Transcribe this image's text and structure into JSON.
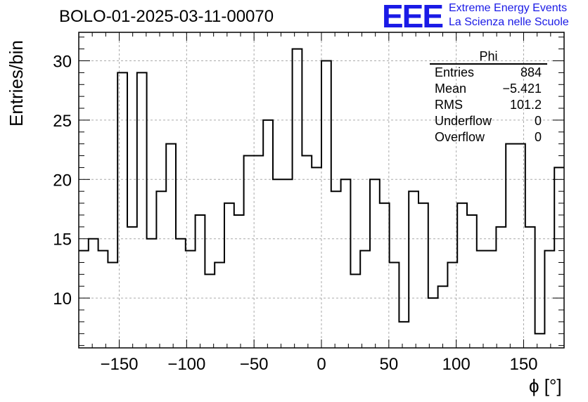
{
  "title": "BOLO-01-2025-03-11-00070",
  "logo": {
    "mark": "EEE",
    "line1": "Extreme Energy Events",
    "line2": "La Scienza nelle Scuole",
    "color": "#1a1ae6"
  },
  "stats": {
    "name": "Phi",
    "rows": [
      {
        "key": "Entries",
        "value": "884"
      },
      {
        "key": "Mean",
        "value": "−5.421"
      },
      {
        "key": "RMS",
        "value": "101.2"
      },
      {
        "key": "Underflow",
        "value": "0"
      },
      {
        "key": "Overflow",
        "value": "0"
      }
    ]
  },
  "chart_data": {
    "type": "bar",
    "style": "step-histogram",
    "xlabel": "ϕ [°]",
    "ylabel": "Entries/bin",
    "xlim": [
      -180,
      180
    ],
    "ylim": [
      5.8,
      32.4
    ],
    "bin_width": 7.2,
    "grid": true,
    "xticks": [
      -150,
      -100,
      -50,
      0,
      50,
      100,
      150
    ],
    "yticks": [
      10,
      15,
      20,
      25,
      30
    ],
    "xtick_labels": [
      "−150",
      "−100",
      "−50",
      "0",
      "50",
      "100",
      "150"
    ],
    "ytick_labels": [
      "10",
      "15",
      "20",
      "25",
      "30"
    ],
    "values": [
      14,
      15,
      14,
      13,
      29,
      16,
      29,
      15,
      19,
      23,
      15,
      14,
      17,
      12,
      13,
      18,
      17,
      22,
      22,
      25,
      20,
      20,
      31,
      22,
      21,
      30,
      19,
      20,
      12,
      14,
      20,
      18,
      13,
      8,
      19,
      18,
      10,
      11,
      13,
      18,
      17,
      14,
      14,
      16,
      23,
      23,
      16,
      7,
      14,
      21
    ]
  }
}
